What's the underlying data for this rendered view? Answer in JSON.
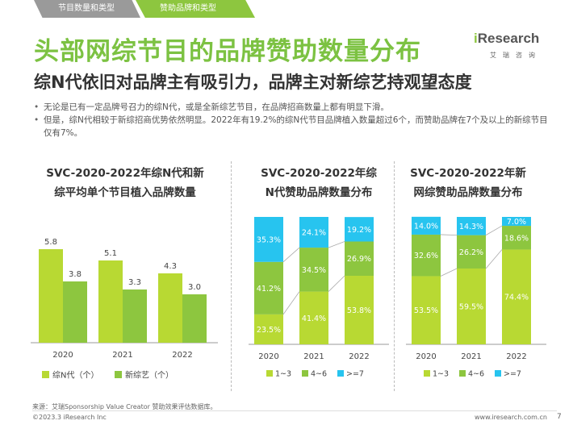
{
  "tabs": [
    "节目数量和类型",
    "赞助品牌和类型"
  ],
  "logo": {
    "brand_i": "i",
    "brand_rest": "Research",
    "sub": "艾瑞咨询"
  },
  "title": "头部网综节目的品牌赞助数量分布",
  "subtitle": "综N代依旧对品牌主有吸引力，品牌主对新综艺持观望态度",
  "bullets": [
    "无论是已有一定品牌号召力的综N代，或是全新综艺节目，在品牌招商数量上都有明显下滑。",
    "但是，综N代相较于新综招商优势依然明显。2022年有19.2%的综N代节目品牌植入数量超过6个，而赞助品牌在7个及以上的新综节目仅有7%。"
  ],
  "colors": {
    "dark_green": "#8dc63f",
    "light_green": "#b8d933",
    "cyan": "#27c4ef",
    "title_green": "#7cc242"
  },
  "chart_data": [
    {
      "type": "bar",
      "title_lines": [
        "SVC-2020-2022年综N代和新",
        "综平均单个节目植入品牌数量"
      ],
      "categories": [
        "2020",
        "2021",
        "2022"
      ],
      "series": [
        {
          "name": "综N代（个）",
          "color": "#b8d933",
          "values": [
            5.8,
            5.1,
            4.3
          ]
        },
        {
          "name": "新综艺（个）",
          "color": "#8dc63f",
          "values": [
            3.8,
            3.3,
            3.0
          ]
        }
      ],
      "ylim": [
        0,
        7
      ],
      "legend": "bottom"
    },
    {
      "type": "bar",
      "stacked": "percent",
      "title_lines": [
        "SVC-2020-2022年综",
        "N代赞助品牌数量分布"
      ],
      "categories": [
        "2020",
        "2021",
        "2022"
      ],
      "series": [
        {
          "name": "1~3",
          "color": "#b8d933",
          "values": [
            23.5,
            41.4,
            53.8
          ],
          "labels": [
            "23.5%",
            "41.4%",
            "53.8%"
          ]
        },
        {
          "name": "4~6",
          "color": "#8dc63f",
          "values": [
            41.2,
            34.5,
            26.9
          ],
          "labels": [
            "41.2%",
            "34.5%",
            "26.9%"
          ]
        },
        {
          "name": ">=7",
          "color": "#27c4ef",
          "values": [
            35.3,
            24.1,
            19.2
          ],
          "labels": [
            "35.3%",
            "24.1%",
            "19.2%"
          ]
        }
      ],
      "legend": "bottom"
    },
    {
      "type": "bar",
      "stacked": "percent",
      "title_lines": [
        "SVC-2020-2022年新",
        "网综赞助品牌数量分布"
      ],
      "categories": [
        "2020",
        "2021",
        "2022"
      ],
      "series": [
        {
          "name": "1~3",
          "color": "#b8d933",
          "values": [
            53.5,
            59.5,
            74.4
          ],
          "labels": [
            "53.5%",
            "59.5%",
            "74.4%"
          ]
        },
        {
          "name": "4~6",
          "color": "#8dc63f",
          "values": [
            32.6,
            26.2,
            18.6
          ],
          "labels": [
            "32.6%",
            "26.2%",
            "18.6%"
          ]
        },
        {
          "name": ">=7",
          "color": "#27c4ef",
          "values": [
            14.0,
            14.3,
            7.0
          ],
          "labels": [
            "14.0%",
            "14.3%",
            "7.0%"
          ]
        }
      ],
      "legend": "bottom"
    }
  ],
  "footer": {
    "source": "来源：艾瑞Sponsorship Value Creator 赞助效果评估数据库。",
    "copyright": "©2023.3 iResearch Inc",
    "url": "www.iresearch.com.cn",
    "page": "7"
  }
}
